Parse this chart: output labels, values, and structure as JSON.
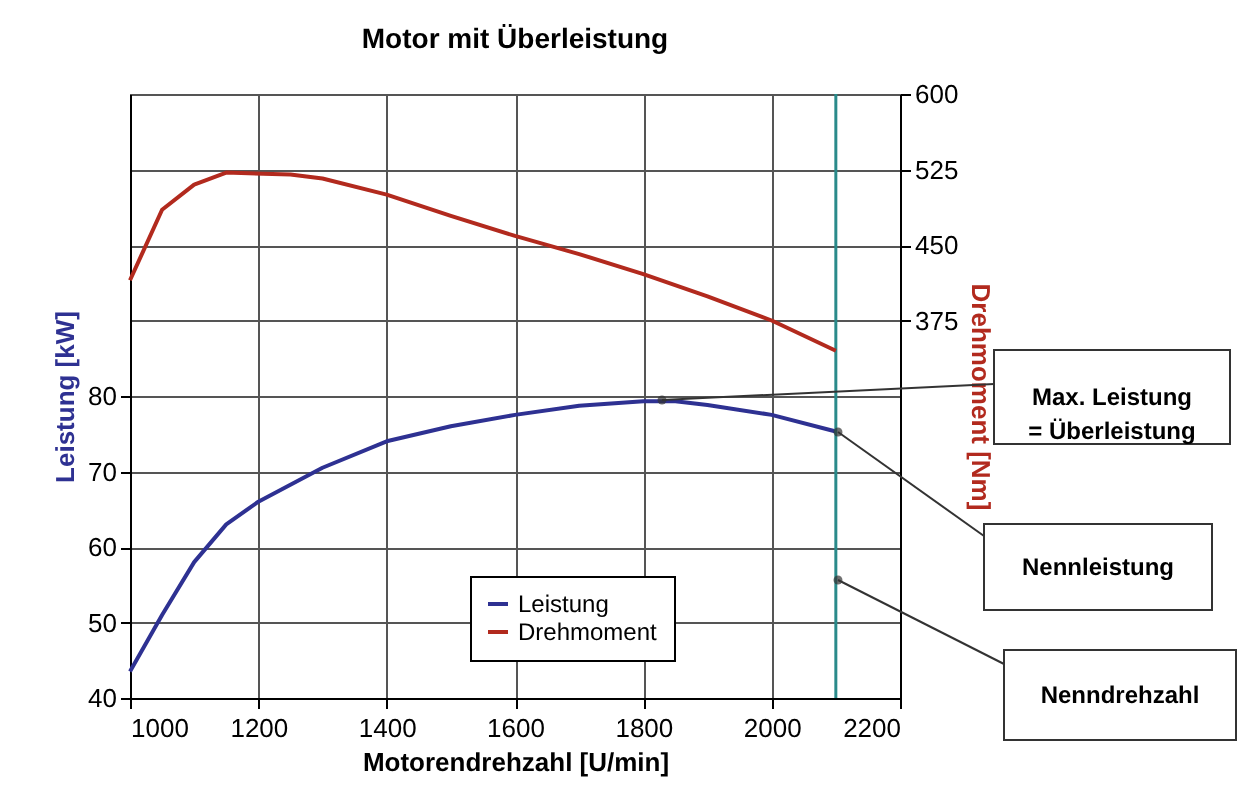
{
  "chart_data": {
    "type": "line",
    "title": "Motor mit Überleistung",
    "xlabel": "Motorendrehzahl [U/min]",
    "ylabel": "Leistung [kW]",
    "y2label": "Drehmoment [Nm]",
    "xlim": [
      1000,
      2200
    ],
    "xticks": [
      1000,
      1200,
      1400,
      1600,
      1800,
      2000,
      2200
    ],
    "ylim": [
      40,
      120
    ],
    "yticks": [
      40,
      50,
      60,
      70,
      80
    ],
    "y2lim": [
      0,
      600
    ],
    "y2ticks": [
      375,
      450,
      525,
      600
    ],
    "grid": true,
    "legend": "bottom",
    "marker": "none",
    "line_style": "solid",
    "series": [
      {
        "name": "Leistung",
        "color": "#2e3192",
        "x": [
          1000,
          1050,
          1100,
          1150,
          1200,
          1300,
          1400,
          1500,
          1600,
          1700,
          1800,
          1850,
          1900,
          2000,
          2100
        ],
        "values": [
          43.5,
          51,
          58,
          63,
          66,
          70.5,
          74,
          76,
          77.5,
          78.7,
          79.3,
          79.3,
          78.8,
          77.5,
          75.3
        ]
      },
      {
        "name": "Drehmoment",
        "color": "#b22a1e",
        "axis": "y2",
        "x": [
          1000,
          1050,
          1100,
          1150,
          1250,
          1300,
          1400,
          1500,
          1600,
          1700,
          1800,
          1900,
          2000,
          2100
        ],
        "values": [
          415,
          485,
          510,
          522,
          520,
          516,
          500,
          479,
          459,
          441,
          421,
          399,
          375,
          345
        ]
      }
    ],
    "ref_lines": [
      {
        "axis": "x",
        "value": 2100,
        "color": "#2a8a8a",
        "line_style": "solid"
      }
    ],
    "annotations": [
      "Max. Leistung\n= Überleistung",
      "Nennleistung",
      "Nenndrehzahl"
    ]
  }
}
